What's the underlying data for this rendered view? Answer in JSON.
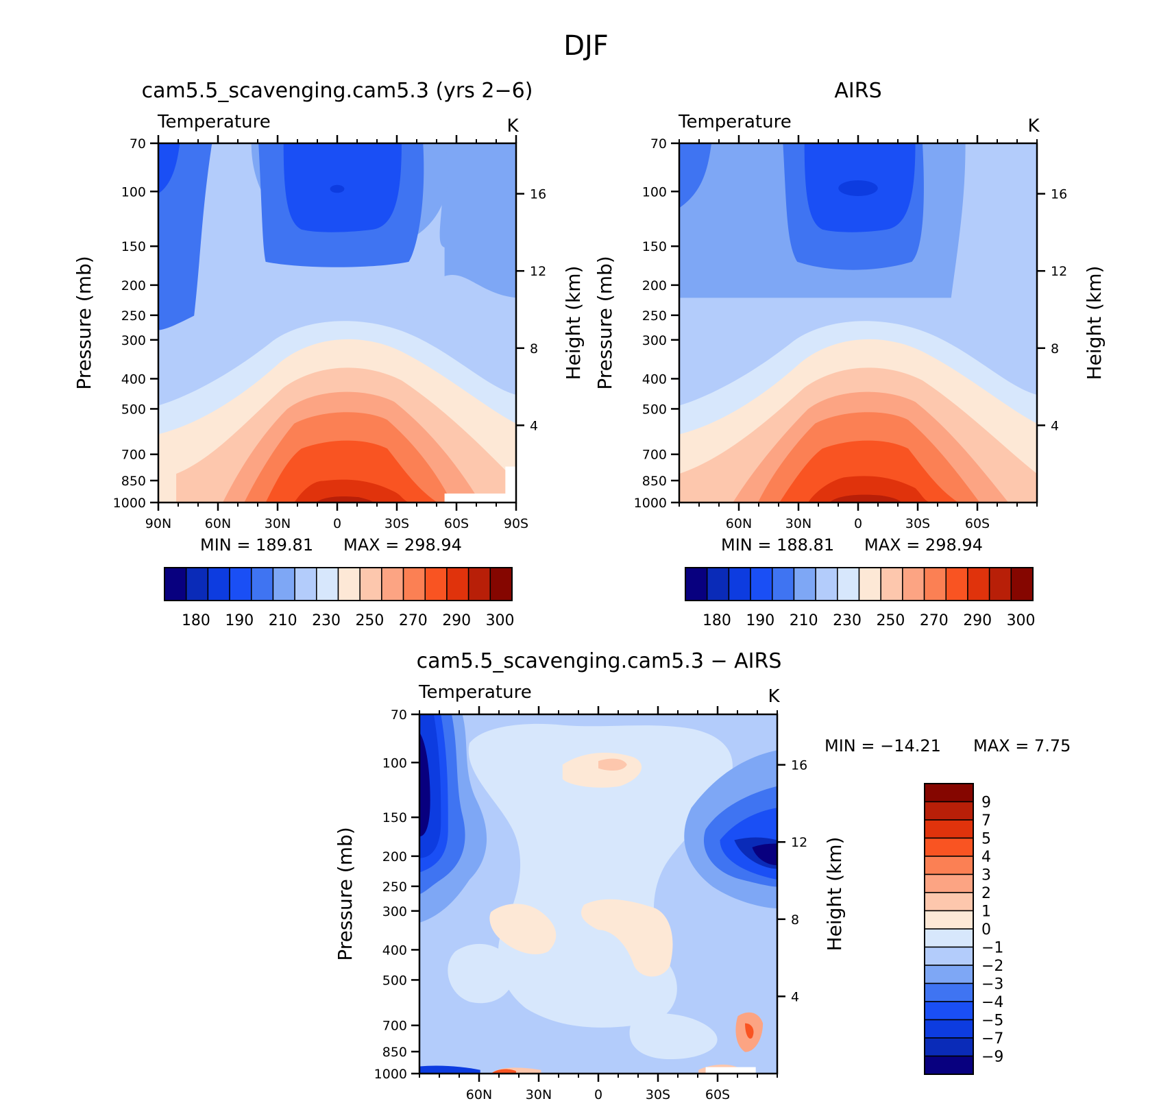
{
  "figure": {
    "title": "DJF"
  },
  "chart_data": [
    {
      "type": "contour",
      "panel_title": "cam5.5_scavenging.cam5.3 (yrs 2−6)",
      "subtitle": "Temperature",
      "units": "K",
      "ylabel": "Pressure (mb)",
      "y2label": "Height (km)",
      "x_ticks": [
        {
          "value": 90,
          "label": "90N"
        },
        {
          "value": 60,
          "label": "60N"
        },
        {
          "value": 30,
          "label": "30N"
        },
        {
          "value": 0,
          "label": "0"
        },
        {
          "value": -30,
          "label": "30S"
        },
        {
          "value": -60,
          "label": "60S"
        },
        {
          "value": -90,
          "label": "90S"
        }
      ],
      "pressure_ticks": [
        70,
        100,
        150,
        200,
        250,
        300,
        400,
        500,
        700,
        850,
        1000
      ],
      "height_ticks": [
        4,
        8,
        12,
        16
      ],
      "min_label": "MIN = 189.81",
      "max_label": "MAX = 298.94",
      "min": 189.81,
      "max": 298.94,
      "colorbar_labels": [
        "180",
        "190",
        "210",
        "230",
        "250",
        "270",
        "290",
        "300"
      ]
    },
    {
      "type": "contour",
      "panel_title": "AIRS",
      "subtitle": "Temperature",
      "units": "K",
      "ylabel": "Pressure (mb)",
      "y2label": "Height (km)",
      "x_ticks": [
        {
          "value": 60,
          "label": "60N"
        },
        {
          "value": 30,
          "label": "30N"
        },
        {
          "value": 0,
          "label": "0"
        },
        {
          "value": -30,
          "label": "30S"
        },
        {
          "value": -60,
          "label": "60S"
        }
      ],
      "pressure_ticks": [
        70,
        100,
        150,
        200,
        250,
        300,
        400,
        500,
        700,
        850,
        1000
      ],
      "height_ticks": [
        4,
        8,
        12,
        16
      ],
      "min_label": "MIN = 188.81",
      "max_label": "MAX = 298.94",
      "min": 188.81,
      "max": 298.94,
      "colorbar_labels": [
        "180",
        "190",
        "210",
        "230",
        "250",
        "270",
        "290",
        "300"
      ]
    },
    {
      "type": "contour",
      "panel_title": "cam5.5_scavenging.cam5.3 − AIRS",
      "subtitle": "Temperature",
      "units": "K",
      "ylabel": "Pressure (mb)",
      "y2label": "Height (km)",
      "x_ticks": [
        {
          "value": 60,
          "label": "60N"
        },
        {
          "value": 30,
          "label": "30N"
        },
        {
          "value": 0,
          "label": "0"
        },
        {
          "value": -30,
          "label": "30S"
        },
        {
          "value": -60,
          "label": "60S"
        }
      ],
      "pressure_ticks": [
        70,
        100,
        150,
        200,
        250,
        300,
        400,
        500,
        700,
        850,
        1000
      ],
      "height_ticks": [
        4,
        8,
        12,
        16
      ],
      "min_label": "MIN = −14.21",
      "max_label": "MAX =    7.75",
      "min": -14.21,
      "max": 7.75,
      "colorbar_labels": [
        "9",
        "7",
        "5",
        "4",
        "3",
        "2",
        "1",
        "0",
        "−1",
        "−2",
        "−3",
        "−4",
        "−5",
        "−7",
        "−9"
      ]
    }
  ],
  "colors": {
    "abs_scale": [
      "#08007f",
      "#0a2bb8",
      "#0d3ce0",
      "#1a4ff5",
      "#3f74f2",
      "#7ea7f5",
      "#b3ccfb",
      "#d7e7fc",
      "#fde8d6",
      "#fdc7ad",
      "#fca483",
      "#fb8054",
      "#f95422",
      "#e0330c",
      "#b81f08",
      "#850600"
    ],
    "diff_scale": [
      "#850600",
      "#b81f08",
      "#e0330c",
      "#f95422",
      "#fb8054",
      "#fca483",
      "#fdc7ad",
      "#fde8d6",
      "#d7e7fc",
      "#b3ccfb",
      "#7ea7f5",
      "#3f74f2",
      "#1a4ff5",
      "#0d3ce0",
      "#0a2bb8",
      "#08007f"
    ]
  }
}
